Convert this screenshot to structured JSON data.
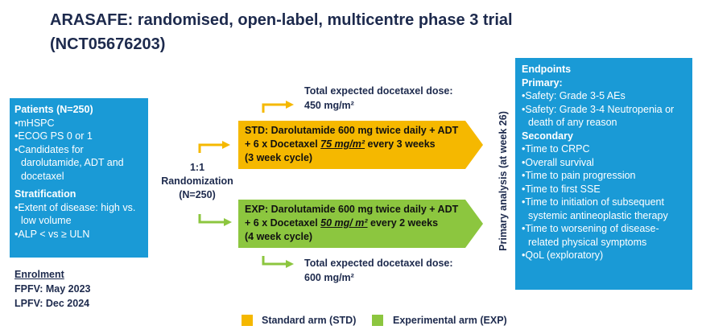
{
  "title": [
    "ARASAFE: randomised, open-label, multicentre phase 3 trial",
    "(NCT05676203)"
  ],
  "patients": {
    "heading": "Patients (N=250)",
    "items": [
      "mHSPC",
      "ECOG PS 0 or 1",
      "Candidates for darolutamide, ADT and docetaxel"
    ],
    "stratification_heading": "Stratification",
    "stratification_items": [
      "Extent of disease: high vs. low volume",
      "ALP < vs ≥ ULN"
    ]
  },
  "enrolment": {
    "heading": "Enrolment",
    "lines": [
      "FPFV: May 2023",
      "LPFV: Dec 2024"
    ]
  },
  "randomization": [
    "1:1",
    "Randomization",
    "(N=250)"
  ],
  "std": {
    "dose": [
      "Total expected docetaxel dose:",
      "450 mg/m²"
    ],
    "line1": "STD: Darolutamide 600 mg twice daily + ADT",
    "line2_before": "+ 6 x Docetaxel ",
    "line2_emph": "75 mg/m²",
    "line2_after": " every 3 weeks",
    "line3": "(3 week cycle)"
  },
  "exp": {
    "dose": [
      "Total expected docetaxel dose:",
      "600 mg/m²"
    ],
    "line1": "EXP: Darolutamide 600 mg twice daily + ADT",
    "line2_before": "+ 6 x Docetaxel ",
    "line2_emph": "50 mg/ m²",
    "line2_after": " every 2 weeks",
    "line3": "(4 week cycle)"
  },
  "primary_analysis": "Primary analysis (at week 26)",
  "endpoints": {
    "heading": "Endpoints",
    "primary_heading": "Primary:",
    "primary_items": [
      "Safety: Grade 3-5 AEs",
      "Safety: Grade 3-4 Neutropenia or death of any reason"
    ],
    "secondary_heading": "Secondary",
    "secondary_items": [
      "Time to CRPC",
      "Overall survival",
      "Time to pain progression",
      "Time to first SSE",
      "Time to initiation of subsequent systemic antineoplastic therapy",
      "Time to worsening of disease-related physical symptoms",
      "QoL (exploratory)"
    ]
  },
  "legend": [
    "Standard arm (STD)",
    "Experimental arm (EXP)"
  ]
}
